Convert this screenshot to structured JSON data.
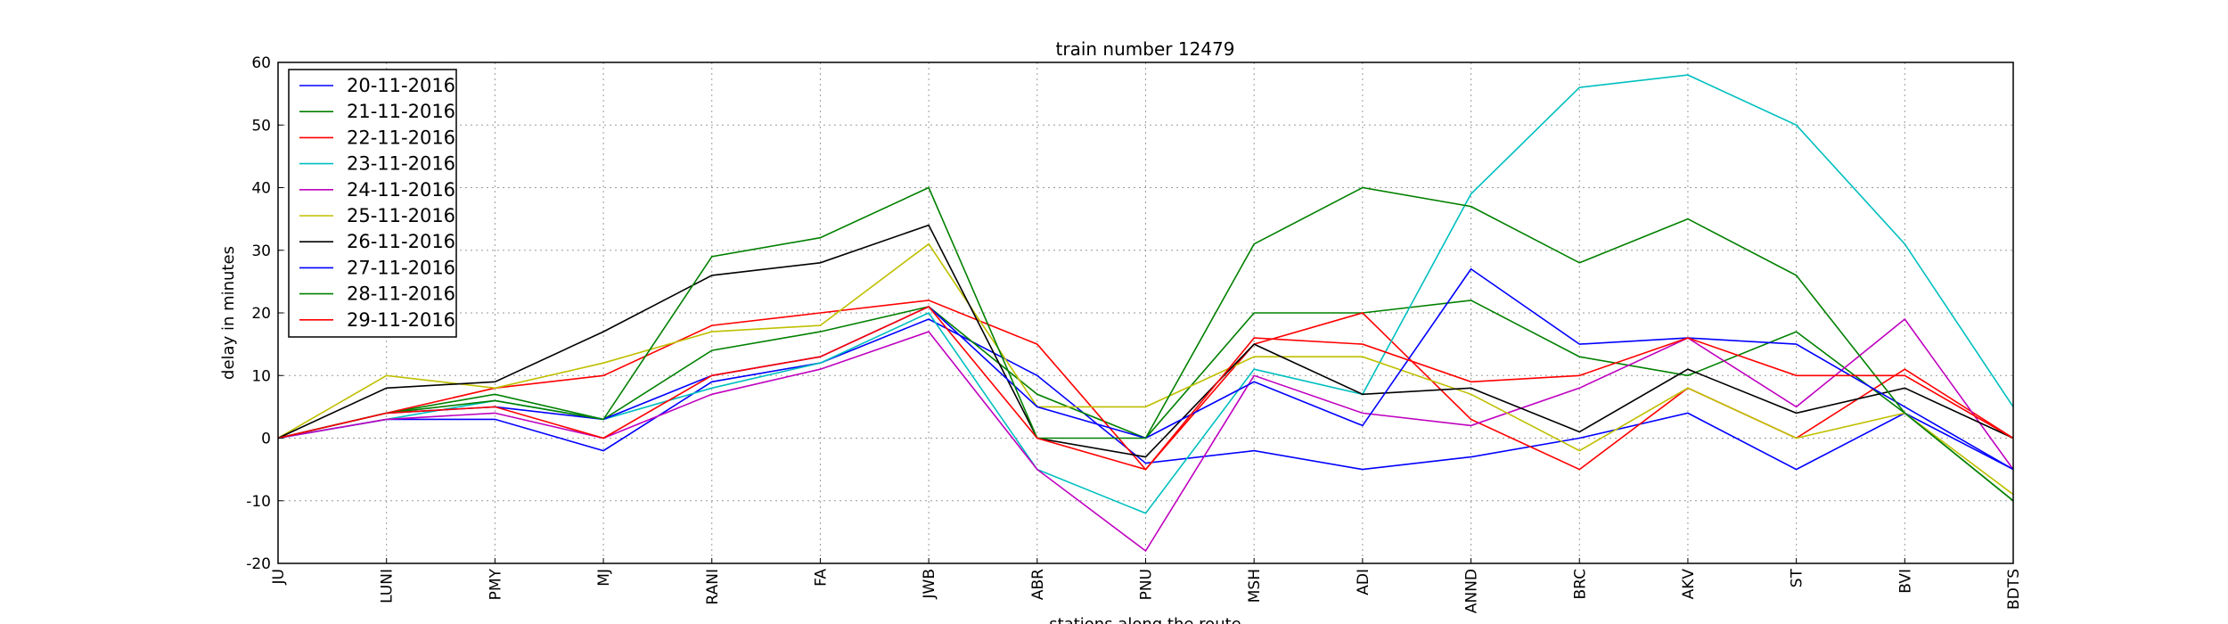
{
  "chart_data": {
    "type": "line",
    "title": "train number 12479",
    "xlabel": "stations along the route",
    "ylabel": "delay in minutes",
    "ylim": [
      -20,
      60
    ],
    "yticks": [
      -20,
      -10,
      0,
      10,
      20,
      30,
      40,
      50,
      60
    ],
    "grid": true,
    "legend_position": "top-left",
    "categories": [
      "JU",
      "LUNI",
      "PMY",
      "MJ",
      "RANI",
      "FA",
      "JWB",
      "ABR",
      "PNU",
      "MSH",
      "ADI",
      "ANND",
      "BRC",
      "AKV",
      "ST",
      "BVI",
      "BDTS"
    ],
    "series": [
      {
        "name": "20-11-2016",
        "color": "#0000ff",
        "values": [
          0,
          3,
          3,
          -2,
          9,
          12,
          19,
          10,
          -4,
          -2,
          -5,
          -3,
          0,
          4,
          -5,
          4,
          -5
        ]
      },
      {
        "name": "21-11-2016",
        "color": "#008000",
        "values": [
          0,
          4,
          7,
          3,
          14,
          17,
          21,
          7,
          0,
          20,
          20,
          22,
          13,
          10,
          17,
          4,
          -10
        ]
      },
      {
        "name": "22-11-2016",
        "color": "#ff0000",
        "values": [
          0,
          4,
          8,
          10,
          18,
          20,
          22,
          15,
          -5,
          15,
          20,
          3,
          -5,
          8,
          0,
          11,
          0
        ]
      },
      {
        "name": "23-11-2016",
        "color": "#00bfbf",
        "values": [
          0,
          3,
          6,
          3,
          8,
          12,
          20,
          -5,
          -12,
          11,
          7,
          39,
          56,
          58,
          50,
          31,
          5
        ]
      },
      {
        "name": "24-11-2016",
        "color": "#bf00bf",
        "values": [
          0,
          3,
          4,
          0,
          7,
          11,
          17,
          -5,
          -18,
          10,
          4,
          2,
          8,
          16,
          5,
          19,
          -5
        ]
      },
      {
        "name": "25-11-2016",
        "color": "#bfbf00",
        "values": [
          0,
          10,
          8,
          12,
          17,
          18,
          31,
          5,
          5,
          13,
          13,
          7,
          -2,
          8,
          0,
          4,
          -9
        ]
      },
      {
        "name": "26-11-2016",
        "color": "#000000",
        "values": [
          0,
          8,
          9,
          17,
          26,
          28,
          34,
          0,
          -3,
          15,
          7,
          8,
          1,
          11,
          4,
          8,
          0
        ]
      },
      {
        "name": "27-11-2016",
        "color": "#0000ff",
        "values": [
          0,
          4,
          5,
          3,
          10,
          13,
          21,
          5,
          0,
          9,
          2,
          27,
          15,
          16,
          15,
          5,
          -5
        ]
      },
      {
        "name": "28-11-2016",
        "color": "#008000",
        "values": [
          0,
          4,
          6,
          3,
          29,
          32,
          40,
          0,
          0,
          31,
          40,
          37,
          28,
          35,
          26,
          4,
          -10
        ]
      },
      {
        "name": "29-11-2016",
        "color": "#ff0000",
        "values": [
          0,
          4,
          5,
          0,
          10,
          13,
          21,
          0,
          -5,
          16,
          15,
          9,
          10,
          16,
          10,
          10,
          0
        ]
      }
    ]
  }
}
